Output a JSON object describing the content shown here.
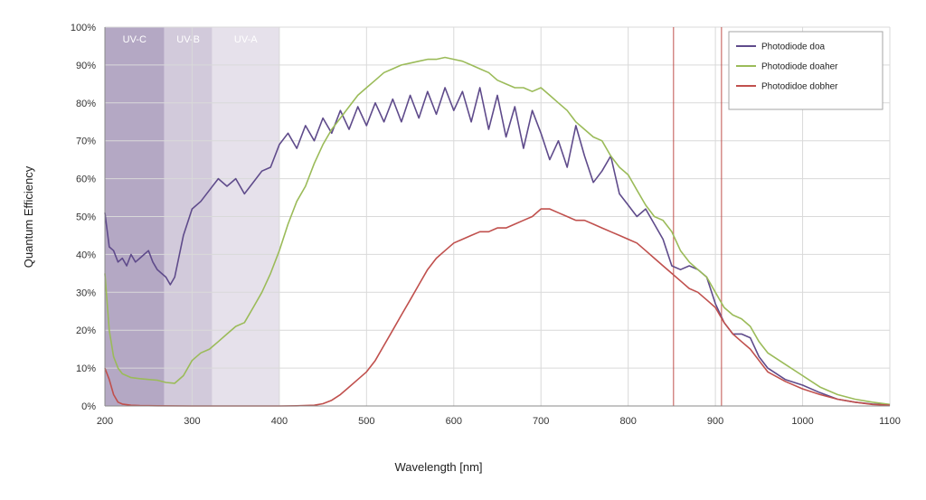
{
  "chart_data": {
    "type": "line",
    "xlabel": "Wavelength [nm]",
    "ylabel": "Quantum Efficiency",
    "xlim": [
      200,
      1100
    ],
    "ylim": [
      0,
      100
    ],
    "x_ticks": [
      "200",
      "300",
      "400",
      "500",
      "600",
      "700",
      "800",
      "900",
      "1000",
      "1100"
    ],
    "y_ticks": [
      "0%",
      "10%",
      "20%",
      "30%",
      "40%",
      "50%",
      "60%",
      "70%",
      "80%",
      "90%",
      "100%"
    ],
    "grid": true,
    "legend_position": "top-right",
    "bands": [
      {
        "label": "UV-C",
        "from": 200,
        "to": 268,
        "color": "#b4a8c4"
      },
      {
        "label": "UV-B",
        "from": 268,
        "to": 323,
        "color": "#d2cadb"
      },
      {
        "label": "UV-A",
        "from": 323,
        "to": 400,
        "color": "#e6e1eb"
      }
    ],
    "vertical_markers": [
      852,
      907
    ],
    "marker_color": "#c0504d",
    "series": [
      {
        "name": "Photodiode doa",
        "color": "#5f4b8b",
        "x": [
          200,
          205,
          210,
          215,
          220,
          225,
          230,
          235,
          240,
          245,
          250,
          255,
          260,
          265,
          270,
          275,
          280,
          290,
          300,
          310,
          320,
          330,
          340,
          350,
          360,
          370,
          380,
          390,
          400,
          410,
          420,
          430,
          440,
          450,
          460,
          470,
          480,
          490,
          500,
          510,
          520,
          530,
          540,
          550,
          560,
          570,
          580,
          590,
          600,
          610,
          620,
          630,
          640,
          650,
          660,
          670,
          680,
          690,
          700,
          710,
          720,
          730,
          740,
          750,
          760,
          770,
          780,
          790,
          800,
          810,
          820,
          830,
          840,
          850,
          860,
          870,
          880,
          890,
          900,
          910,
          920,
          930,
          940,
          950,
          960,
          980,
          1000,
          1020,
          1040,
          1060,
          1080,
          1100
        ],
        "y": [
          51,
          42,
          41,
          38,
          39,
          37,
          40,
          38,
          39,
          40,
          41,
          38,
          36,
          35,
          34,
          32,
          34,
          45,
          52,
          54,
          57,
          60,
          58,
          60,
          56,
          59,
          62,
          63,
          69,
          72,
          68,
          74,
          70,
          76,
          72,
          78,
          73,
          79,
          74,
          80,
          75,
          81,
          75,
          82,
          76,
          83,
          77,
          84,
          78,
          83,
          75,
          84,
          73,
          82,
          71,
          79,
          68,
          78,
          72,
          65,
          70,
          63,
          74,
          66,
          59,
          62,
          66,
          56,
          53,
          50,
          52,
          48,
          44,
          37,
          36,
          37,
          36,
          34,
          27,
          22,
          19,
          19,
          18,
          13,
          10,
          7,
          5.5,
          3.5,
          1.8,
          1,
          0.5,
          0.3
        ]
      },
      {
        "name": "Photodiode doaher",
        "color": "#9bbb59",
        "x": [
          200,
          205,
          210,
          215,
          220,
          225,
          230,
          240,
          250,
          260,
          270,
          280,
          290,
          300,
          310,
          320,
          330,
          340,
          350,
          360,
          370,
          380,
          390,
          400,
          410,
          420,
          430,
          440,
          450,
          460,
          470,
          480,
          490,
          500,
          510,
          520,
          530,
          540,
          550,
          560,
          570,
          580,
          590,
          600,
          610,
          620,
          630,
          640,
          650,
          660,
          670,
          680,
          690,
          700,
          710,
          720,
          730,
          740,
          750,
          760,
          770,
          780,
          790,
          800,
          810,
          820,
          830,
          840,
          850,
          860,
          870,
          880,
          890,
          900,
          910,
          920,
          930,
          940,
          950,
          960,
          980,
          1000,
          1020,
          1040,
          1060,
          1080,
          1100
        ],
        "y": [
          35,
          20,
          13,
          10,
          8.5,
          8,
          7.5,
          7.2,
          7,
          6.8,
          6.2,
          6,
          8,
          12,
          14,
          15,
          17,
          19,
          21,
          22,
          26,
          30,
          35,
          41,
          48,
          54,
          58,
          64,
          69,
          73,
          76,
          79,
          82,
          84,
          86,
          88,
          89,
          90,
          90.5,
          91,
          91.5,
          91.5,
          92,
          91.5,
          91,
          90,
          89,
          88,
          86,
          85,
          84,
          84,
          83,
          84,
          82,
          80,
          78,
          75,
          73,
          71,
          70,
          66,
          63,
          61,
          57,
          53,
          50,
          49,
          46,
          41,
          38,
          36,
          34,
          30,
          26,
          24,
          23,
          21,
          17,
          14,
          11,
          8,
          5,
          3,
          1.8,
          1,
          0.4
        ]
      },
      {
        "name": "Photodidoe dobher",
        "color": "#c0504d",
        "x": [
          200,
          205,
          210,
          215,
          220,
          230,
          240,
          260,
          300,
          350,
          400,
          420,
          440,
          450,
          460,
          470,
          480,
          490,
          500,
          510,
          520,
          530,
          540,
          550,
          560,
          570,
          580,
          590,
          600,
          610,
          620,
          630,
          640,
          650,
          660,
          670,
          680,
          690,
          700,
          710,
          720,
          730,
          740,
          750,
          760,
          770,
          780,
          790,
          800,
          810,
          820,
          830,
          840,
          850,
          860,
          870,
          880,
          890,
          900,
          910,
          920,
          930,
          940,
          950,
          960,
          980,
          1000,
          1020,
          1040,
          1060,
          1080,
          1100
        ],
        "y": [
          10,
          7,
          3,
          1,
          0.5,
          0.2,
          0.1,
          0.05,
          0,
          0,
          0,
          0.05,
          0.2,
          0.6,
          1.5,
          3,
          5,
          7,
          9,
          12,
          16,
          20,
          24,
          28,
          32,
          36,
          39,
          41,
          43,
          44,
          45,
          46,
          46,
          47,
          47,
          48,
          49,
          50,
          52,
          52,
          51,
          50,
          49,
          49,
          48,
          47,
          46,
          45,
          44,
          43,
          41,
          39,
          37,
          35,
          33,
          31,
          30,
          28,
          26,
          22,
          19,
          17,
          15,
          12,
          9,
          6.5,
          4.5,
          3,
          1.8,
          1,
          0.4,
          0.2
        ]
      }
    ]
  }
}
